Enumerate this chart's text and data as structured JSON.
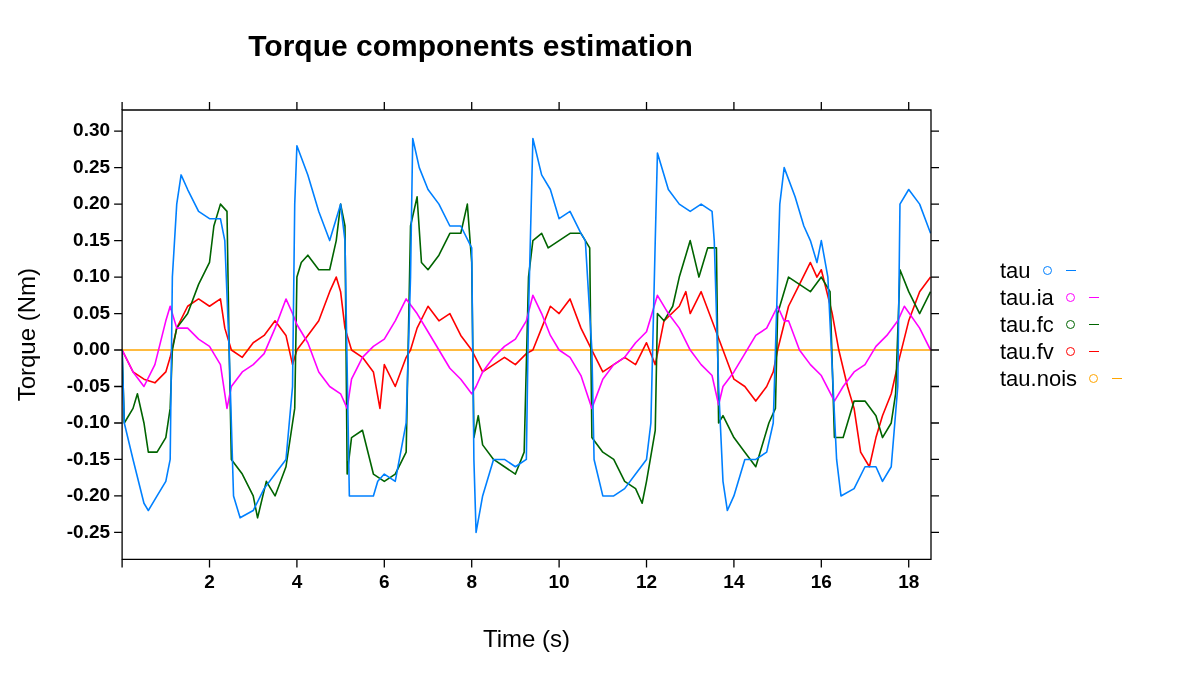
{
  "chart_data": {
    "type": "line",
    "title": "Torque components estimation",
    "xlabel": "Time (s)",
    "ylabel": "Torque (Nm)",
    "xlim": [
      0,
      18.51
    ],
    "ylim": [
      -0.287,
      0.329
    ],
    "xticks": [
      {
        "value": 0,
        "label": null
      },
      2,
      4,
      6,
      8,
      10,
      12,
      14,
      16,
      18
    ],
    "yticks": [
      {
        "value": -0.25,
        "label": "-0.25"
      },
      {
        "value": -0.2,
        "label": "-0.20"
      },
      {
        "value": -0.15,
        "label": "-0.15"
      },
      {
        "value": -0.1,
        "label": "-0.10"
      },
      {
        "value": -0.05,
        "label": "-0.05"
      },
      {
        "value": 0,
        "label": "0.00"
      },
      {
        "value": 0.05,
        "label": "0.05"
      },
      {
        "value": 0.1,
        "label": "0.10"
      },
      {
        "value": 0.15,
        "label": "0.15"
      },
      {
        "value": 0.2,
        "label": "0.20"
      },
      {
        "value": 0.25,
        "label": "0.25"
      },
      {
        "value": 0.3,
        "label": "0.30"
      }
    ],
    "grid": false,
    "legend": "right",
    "marker": "none",
    "line_style": "solid",
    "series": [
      {
        "name": "tau",
        "color": "#0080ff",
        "x": [
          0,
          0.05,
          0.25,
          0.5,
          0.6,
          0.8,
          1.0,
          1.1,
          1.15,
          1.25,
          1.35,
          1.5,
          1.75,
          2.0,
          2.25,
          2.35,
          2.45,
          2.55,
          2.7,
          3.0,
          3.25,
          3.5,
          3.75,
          3.9,
          3.95,
          4.0,
          4.25,
          4.5,
          4.75,
          4.9,
          5.0,
          5.1,
          5.2,
          5.5,
          5.75,
          5.85,
          6.0,
          6.25,
          6.5,
          6.6,
          6.65,
          6.8,
          7.0,
          7.25,
          7.5,
          7.75,
          8.0,
          8.05,
          8.1,
          8.25,
          8.5,
          8.75,
          9.0,
          9.25,
          9.3,
          9.4,
          9.6,
          9.8,
          10.0,
          10.25,
          10.5,
          10.6,
          10.75,
          10.8,
          11.0,
          11.25,
          11.5,
          11.75,
          12.0,
          12.1,
          12.2,
          12.25,
          12.5,
          12.75,
          13.0,
          13.25,
          13.5,
          13.55,
          13.65,
          13.75,
          13.85,
          14.0,
          14.25,
          14.5,
          14.75,
          14.9,
          15.05,
          15.15,
          15.4,
          15.6,
          15.75,
          15.9,
          16.0,
          16.15,
          16.35,
          16.45,
          16.75,
          17.0,
          17.25,
          17.4,
          17.6,
          17.75,
          17.8,
          18.0,
          18.25,
          18.5
        ],
        "values": [
          0,
          -0.1,
          -0.15,
          -0.21,
          -0.22,
          -0.2,
          -0.18,
          -0.15,
          0.1,
          0.2,
          0.24,
          0.22,
          0.19,
          0.18,
          0.18,
          0.15,
          0,
          -0.2,
          -0.23,
          -0.22,
          -0.19,
          -0.17,
          -0.15,
          -0.05,
          0.2,
          0.28,
          0.24,
          0.19,
          0.15,
          0.18,
          0.2,
          0.15,
          -0.2,
          -0.2,
          -0.2,
          -0.18,
          -0.17,
          -0.18,
          -0.1,
          0.1,
          0.29,
          0.25,
          0.22,
          0.2,
          0.17,
          0.17,
          0.14,
          -0.15,
          -0.25,
          -0.2,
          -0.15,
          -0.15,
          -0.16,
          -0.15,
          0.05,
          0.29,
          0.24,
          0.22,
          0.18,
          0.19,
          0.16,
          0.15,
          0,
          -0.15,
          -0.2,
          -0.2,
          -0.19,
          -0.17,
          -0.15,
          -0.1,
          0.15,
          0.27,
          0.22,
          0.2,
          0.19,
          0.2,
          0.19,
          0.15,
          -0.05,
          -0.18,
          -0.22,
          -0.2,
          -0.15,
          -0.15,
          -0.14,
          -0.1,
          0.2,
          0.25,
          0.21,
          0.17,
          0.15,
          0.12,
          0.15,
          0.1,
          -0.15,
          -0.2,
          -0.19,
          -0.16,
          -0.16,
          -0.18,
          -0.16,
          -0.05,
          0.2,
          0.22,
          0.2,
          0.16
        ]
      },
      {
        "name": "tau.ia",
        "color": "#ff00ff",
        "x": [
          0,
          0.25,
          0.5,
          0.75,
          1.0,
          1.1,
          1.25,
          1.5,
          1.75,
          2.0,
          2.25,
          2.4,
          2.5,
          2.75,
          3.0,
          3.25,
          3.5,
          3.75,
          3.9,
          4.0,
          4.25,
          4.5,
          4.75,
          5.0,
          5.15,
          5.25,
          5.5,
          5.75,
          6.0,
          6.25,
          6.5,
          6.75,
          7.0,
          7.25,
          7.5,
          7.75,
          8.0,
          8.1,
          8.25,
          8.5,
          8.75,
          9.0,
          9.25,
          9.4,
          9.6,
          9.8,
          10.0,
          10.25,
          10.5,
          10.75,
          11.0,
          11.25,
          11.5,
          11.75,
          12.0,
          12.25,
          12.5,
          12.75,
          13.0,
          13.25,
          13.5,
          13.65,
          13.75,
          14.0,
          14.25,
          14.5,
          14.75,
          15.0,
          15.15,
          15.25,
          15.5,
          15.75,
          16.0,
          16.3,
          16.5,
          16.75,
          17.0,
          17.25,
          17.5,
          17.75,
          17.9,
          18.25,
          18.5
        ],
        "values": [
          0,
          -0.03,
          -0.05,
          -0.02,
          0.04,
          0.06,
          0.03,
          0.03,
          0.015,
          0.005,
          -0.02,
          -0.08,
          -0.05,
          -0.03,
          -0.02,
          -0.005,
          0.03,
          0.07,
          0.05,
          0.035,
          0.01,
          -0.03,
          -0.05,
          -0.06,
          -0.08,
          -0.04,
          -0.01,
          0.005,
          0.015,
          0.04,
          0.07,
          0.05,
          0.025,
          0,
          -0.025,
          -0.04,
          -0.06,
          -0.05,
          -0.03,
          -0.01,
          0.005,
          0.015,
          0.04,
          0.075,
          0.05,
          0.02,
          0,
          -0.01,
          -0.035,
          -0.08,
          -0.04,
          -0.02,
          -0.01,
          0.01,
          0.025,
          0.075,
          0.05,
          0.03,
          0,
          -0.02,
          -0.035,
          -0.075,
          -0.05,
          -0.03,
          -0.005,
          0.02,
          0.03,
          0.06,
          0.04,
          0.04,
          0,
          -0.02,
          -0.035,
          -0.07,
          -0.05,
          -0.03,
          -0.02,
          0.005,
          0.02,
          0.04,
          0.06,
          0.03,
          0
        ]
      },
      {
        "name": "tau.fc",
        "color": "#006400",
        "x": [
          0,
          0.05,
          0.25,
          0.35,
          0.5,
          0.6,
          0.8,
          1.0,
          1.1,
          1.15,
          1.25,
          1.5,
          1.75,
          2.0,
          2.1,
          2.25,
          2.4,
          2.45,
          2.5,
          2.75,
          3.0,
          3.1,
          3.3,
          3.5,
          3.75,
          3.95,
          4.0,
          4.1,
          4.25,
          4.5,
          4.75,
          4.9,
          5.0,
          5.1,
          5.15,
          5.25,
          5.5,
          5.75,
          6.0,
          6.25,
          6.5,
          6.6,
          6.75,
          6.85,
          7.0,
          7.25,
          7.5,
          7.75,
          7.9,
          8.0,
          8.05,
          8.15,
          8.25,
          8.5,
          8.75,
          9.0,
          9.2,
          9.3,
          9.4,
          9.6,
          9.75,
          10.0,
          10.25,
          10.5,
          10.7,
          10.75,
          11.0,
          11.25,
          11.5,
          11.75,
          11.9,
          12.0,
          12.2,
          12.25,
          12.4,
          12.6,
          12.75,
          13.0,
          13.2,
          13.4,
          13.6,
          13.65,
          13.75,
          14.0,
          14.25,
          14.5,
          14.6,
          14.8,
          14.95,
          15.0,
          15.1,
          15.25,
          15.5,
          15.75,
          16.0,
          16.2,
          16.3,
          16.5,
          16.75,
          17.0,
          17.25,
          17.4,
          17.6,
          17.7,
          17.8,
          18.0,
          18.25,
          18.5
        ],
        "values": [
          0,
          -0.1,
          -0.08,
          -0.06,
          -0.1,
          -0.14,
          -0.14,
          -0.12,
          -0.08,
          0,
          0.03,
          0.05,
          0.09,
          0.12,
          0.17,
          0.2,
          0.19,
          0,
          -0.15,
          -0.17,
          -0.2,
          -0.23,
          -0.18,
          -0.2,
          -0.16,
          -0.08,
          0.1,
          0.12,
          0.13,
          0.11,
          0.11,
          0.15,
          0.2,
          0.17,
          -0.17,
          -0.12,
          -0.11,
          -0.17,
          -0.18,
          -0.17,
          -0.14,
          0.17,
          0.21,
          0.12,
          0.11,
          0.13,
          0.16,
          0.16,
          0.2,
          0.12,
          -0.12,
          -0.09,
          -0.13,
          -0.15,
          -0.16,
          -0.17,
          -0.14,
          0.1,
          0.15,
          0.16,
          0.14,
          0.15,
          0.16,
          0.16,
          0.14,
          -0.12,
          -0.14,
          -0.15,
          -0.18,
          -0.19,
          -0.21,
          -0.18,
          -0.11,
          0.05,
          0.04,
          0.06,
          0.1,
          0.15,
          0.1,
          0.14,
          0.14,
          -0.1,
          -0.09,
          -0.12,
          -0.14,
          -0.16,
          -0.14,
          -0.1,
          -0.08,
          0.05,
          0.07,
          0.1,
          0.09,
          0.08,
          0.1,
          0.08,
          -0.12,
          -0.12,
          -0.07,
          -0.07,
          -0.09,
          -0.12,
          -0.1,
          -0.06,
          0.11,
          0.08,
          0.05,
          0.08
        ]
      },
      {
        "name": "tau.fv",
        "color": "#ff0000",
        "x": [
          0,
          0.25,
          0.5,
          0.75,
          1.0,
          1.1,
          1.25,
          1.5,
          1.75,
          2.0,
          2.25,
          2.35,
          2.5,
          2.75,
          3.0,
          3.25,
          3.5,
          3.75,
          3.9,
          4.0,
          4.25,
          4.5,
          4.75,
          4.9,
          5.0,
          5.1,
          5.25,
          5.5,
          5.75,
          5.9,
          6.0,
          6.25,
          6.5,
          6.6,
          6.75,
          7.0,
          7.25,
          7.5,
          7.75,
          8.0,
          8.25,
          8.5,
          8.75,
          9.0,
          9.25,
          9.4,
          9.6,
          9.8,
          10.0,
          10.25,
          10.5,
          10.75,
          11.0,
          11.25,
          11.5,
          11.75,
          12.0,
          12.2,
          12.4,
          12.75,
          12.9,
          13.0,
          13.25,
          13.5,
          13.75,
          14.0,
          14.25,
          14.5,
          14.75,
          14.9,
          15.0,
          15.25,
          15.5,
          15.75,
          15.9,
          16.0,
          16.25,
          16.4,
          16.6,
          16.75,
          16.9,
          17.1,
          17.25,
          17.4,
          17.6,
          17.75,
          18.0,
          18.25,
          18.5
        ],
        "values": [
          0,
          -0.03,
          -0.04,
          -0.045,
          -0.03,
          -0.01,
          0.03,
          0.06,
          0.07,
          0.06,
          0.07,
          0.03,
          0,
          -0.01,
          0.01,
          0.02,
          0.04,
          0.02,
          -0.02,
          0,
          0.02,
          0.04,
          0.08,
          0.1,
          0.08,
          0.03,
          0,
          -0.01,
          -0.03,
          -0.08,
          -0.02,
          -0.05,
          -0.01,
          0,
          0.03,
          0.06,
          0.04,
          0.05,
          0.02,
          0,
          -0.03,
          -0.02,
          -0.01,
          -0.02,
          -0.005,
          0,
          0.03,
          0.06,
          0.05,
          0.07,
          0.03,
          0,
          -0.03,
          -0.02,
          -0.01,
          -0.02,
          0.01,
          -0.02,
          0.04,
          0.06,
          0.08,
          0.05,
          0.08,
          0.04,
          0,
          -0.04,
          -0.05,
          -0.07,
          -0.05,
          -0.03,
          0,
          0.06,
          0.09,
          0.12,
          0.1,
          0.11,
          0.05,
          0,
          -0.05,
          -0.08,
          -0.14,
          -0.16,
          -0.12,
          -0.09,
          -0.06,
          -0.02,
          0.04,
          0.08,
          0.1
        ]
      },
      {
        "name": "tau.nois",
        "color": "#ffa500",
        "x": [
          0,
          18.51
        ],
        "values": [
          0,
          0
        ]
      }
    ]
  }
}
